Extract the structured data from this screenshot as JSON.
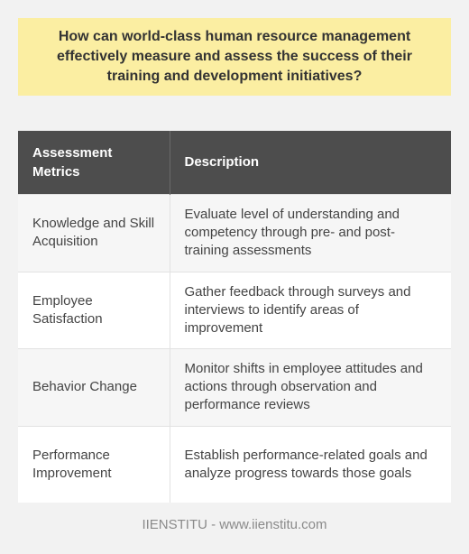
{
  "question": "How can world-class human resource management effectively measure and assess the success of their training and development initiatives?",
  "table": {
    "headers": [
      "Assessment Metrics",
      "Description"
    ],
    "rows": [
      {
        "metric": "Knowledge and Skill Acquisition",
        "description": "Evaluate level of understanding and competency through pre- and post-training assessments"
      },
      {
        "metric": "Employee Satisfaction",
        "description": "Gather feedback through surveys and interviews to identify areas of improvement"
      },
      {
        "metric": "Behavior Change",
        "description": "Monitor shifts in employee attitudes and actions through observation and performance reviews"
      },
      {
        "metric": "Performance Improvement",
        "description": "Establish performance-related goals and analyze progress towards those goals"
      }
    ]
  },
  "footer": "IIENSTITU - www.iienstitu.com",
  "colors": {
    "question_bg": "#fbeea2",
    "header_bg": "#4d4d4d",
    "page_bg": "#f2f2f2"
  }
}
